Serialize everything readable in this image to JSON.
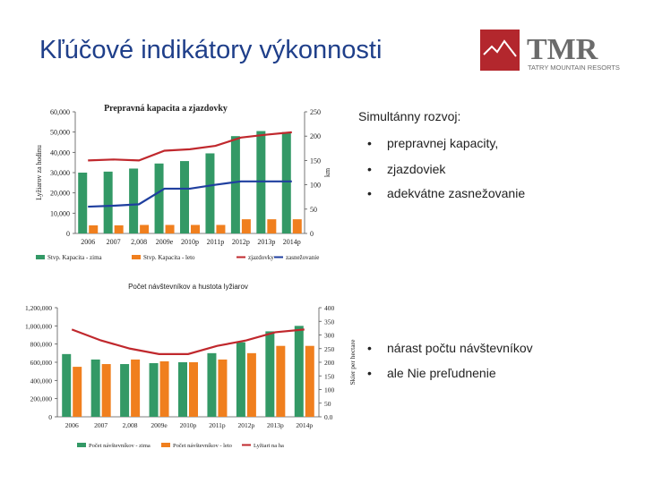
{
  "slide": {
    "title": "Kľúčové indikátory výkonnosti",
    "logo_text": "TMR",
    "logo_subtitle": "TATRY MOUNTAIN RESORTS"
  },
  "right_top": {
    "heading": "Simultánny rozvoj:",
    "bullets": [
      "prepravnej kapacity,",
      "zjazdoviek",
      "adekvátne zasnežovanie"
    ]
  },
  "right_bottom": {
    "bullets": [
      "nárast počtu návštevníkov",
      "ale Nie preľudnenie"
    ]
  },
  "colors": {
    "green": "#339966",
    "orange": "#f07f1e",
    "blue": "#1f3f9f",
    "red": "#c0282d",
    "title": "#1f3f8a"
  },
  "chart_data": [
    {
      "type": "bar",
      "title": "Prepravná kapacita a zjazdovky",
      "categories": [
        "2006",
        "2007",
        "2,008",
        "2009e",
        "2010p",
        "2011p",
        "2012p",
        "2013p",
        "2014p"
      ],
      "ylabel": "Lyžiarov za hodinu",
      "y2label": "km",
      "ylim": [
        0,
        60000
      ],
      "y2lim": [
        0,
        250
      ],
      "yticks": [
        "0",
        "10,000",
        "20,000",
        "30,000",
        "40,000",
        "50,000",
        "60,000"
      ],
      "y2ticks": [
        "0",
        "50",
        "100",
        "150",
        "200",
        "250"
      ],
      "series": [
        {
          "name": "Stvp. Kapacita - zima",
          "kind": "bar",
          "axis": "left",
          "color": "#339966",
          "values": [
            30000,
            30500,
            32000,
            34500,
            35700,
            39500,
            48000,
            50500,
            50000
          ]
        },
        {
          "name": "Stvp. Kapacita - leto",
          "kind": "bar",
          "axis": "left",
          "color": "#f07f1e",
          "values": [
            4000,
            4000,
            4200,
            4200,
            4200,
            4200,
            7000,
            7000,
            7000
          ]
        },
        {
          "name": "zjazdovky",
          "kind": "line",
          "axis": "right",
          "color": "#c0282d",
          "values": [
            150,
            152,
            150,
            170,
            173,
            180,
            197,
            203,
            208
          ]
        },
        {
          "name": "zasnežovanie",
          "kind": "line",
          "axis": "right",
          "color": "#1f3f9f",
          "values": [
            55,
            57,
            60,
            92,
            92,
            100,
            107,
            107,
            107
          ]
        }
      ]
    },
    {
      "type": "bar",
      "title": "Počet návštevníkov a hustota lyžiarov",
      "categories": [
        "2006",
        "2007",
        "2,008",
        "2009e",
        "2010p",
        "2011p",
        "2012p",
        "2013p",
        "2014p"
      ],
      "ylabel": "",
      "y2label": "Skier per hectare",
      "ylim": [
        0,
        1200000
      ],
      "y2lim": [
        0,
        400
      ],
      "yticks": [
        "0",
        "200,000",
        "400,000",
        "600,000",
        "800,000",
        "1,000,000",
        "1,200,000"
      ],
      "y2ticks": [
        "0.0",
        "50",
        "100",
        "150",
        "200",
        "250",
        "300",
        "350",
        "400"
      ],
      "series": [
        {
          "name": "Počet návštevníkov - zima",
          "kind": "bar",
          "axis": "left",
          "color": "#339966",
          "values": [
            690000,
            630000,
            580000,
            590000,
            600000,
            700000,
            820000,
            940000,
            1000000
          ]
        },
        {
          "name": "Počet návštevníkov - leto",
          "kind": "bar",
          "axis": "left",
          "color": "#f07f1e",
          "values": [
            550000,
            580000,
            630000,
            610000,
            600000,
            630000,
            700000,
            780000,
            780000
          ]
        },
        {
          "name": "Lyžiari na ha",
          "kind": "line",
          "axis": "right",
          "color": "#c0282d",
          "values": [
            320,
            280,
            250,
            230,
            230,
            260,
            280,
            310,
            320
          ]
        }
      ]
    }
  ]
}
